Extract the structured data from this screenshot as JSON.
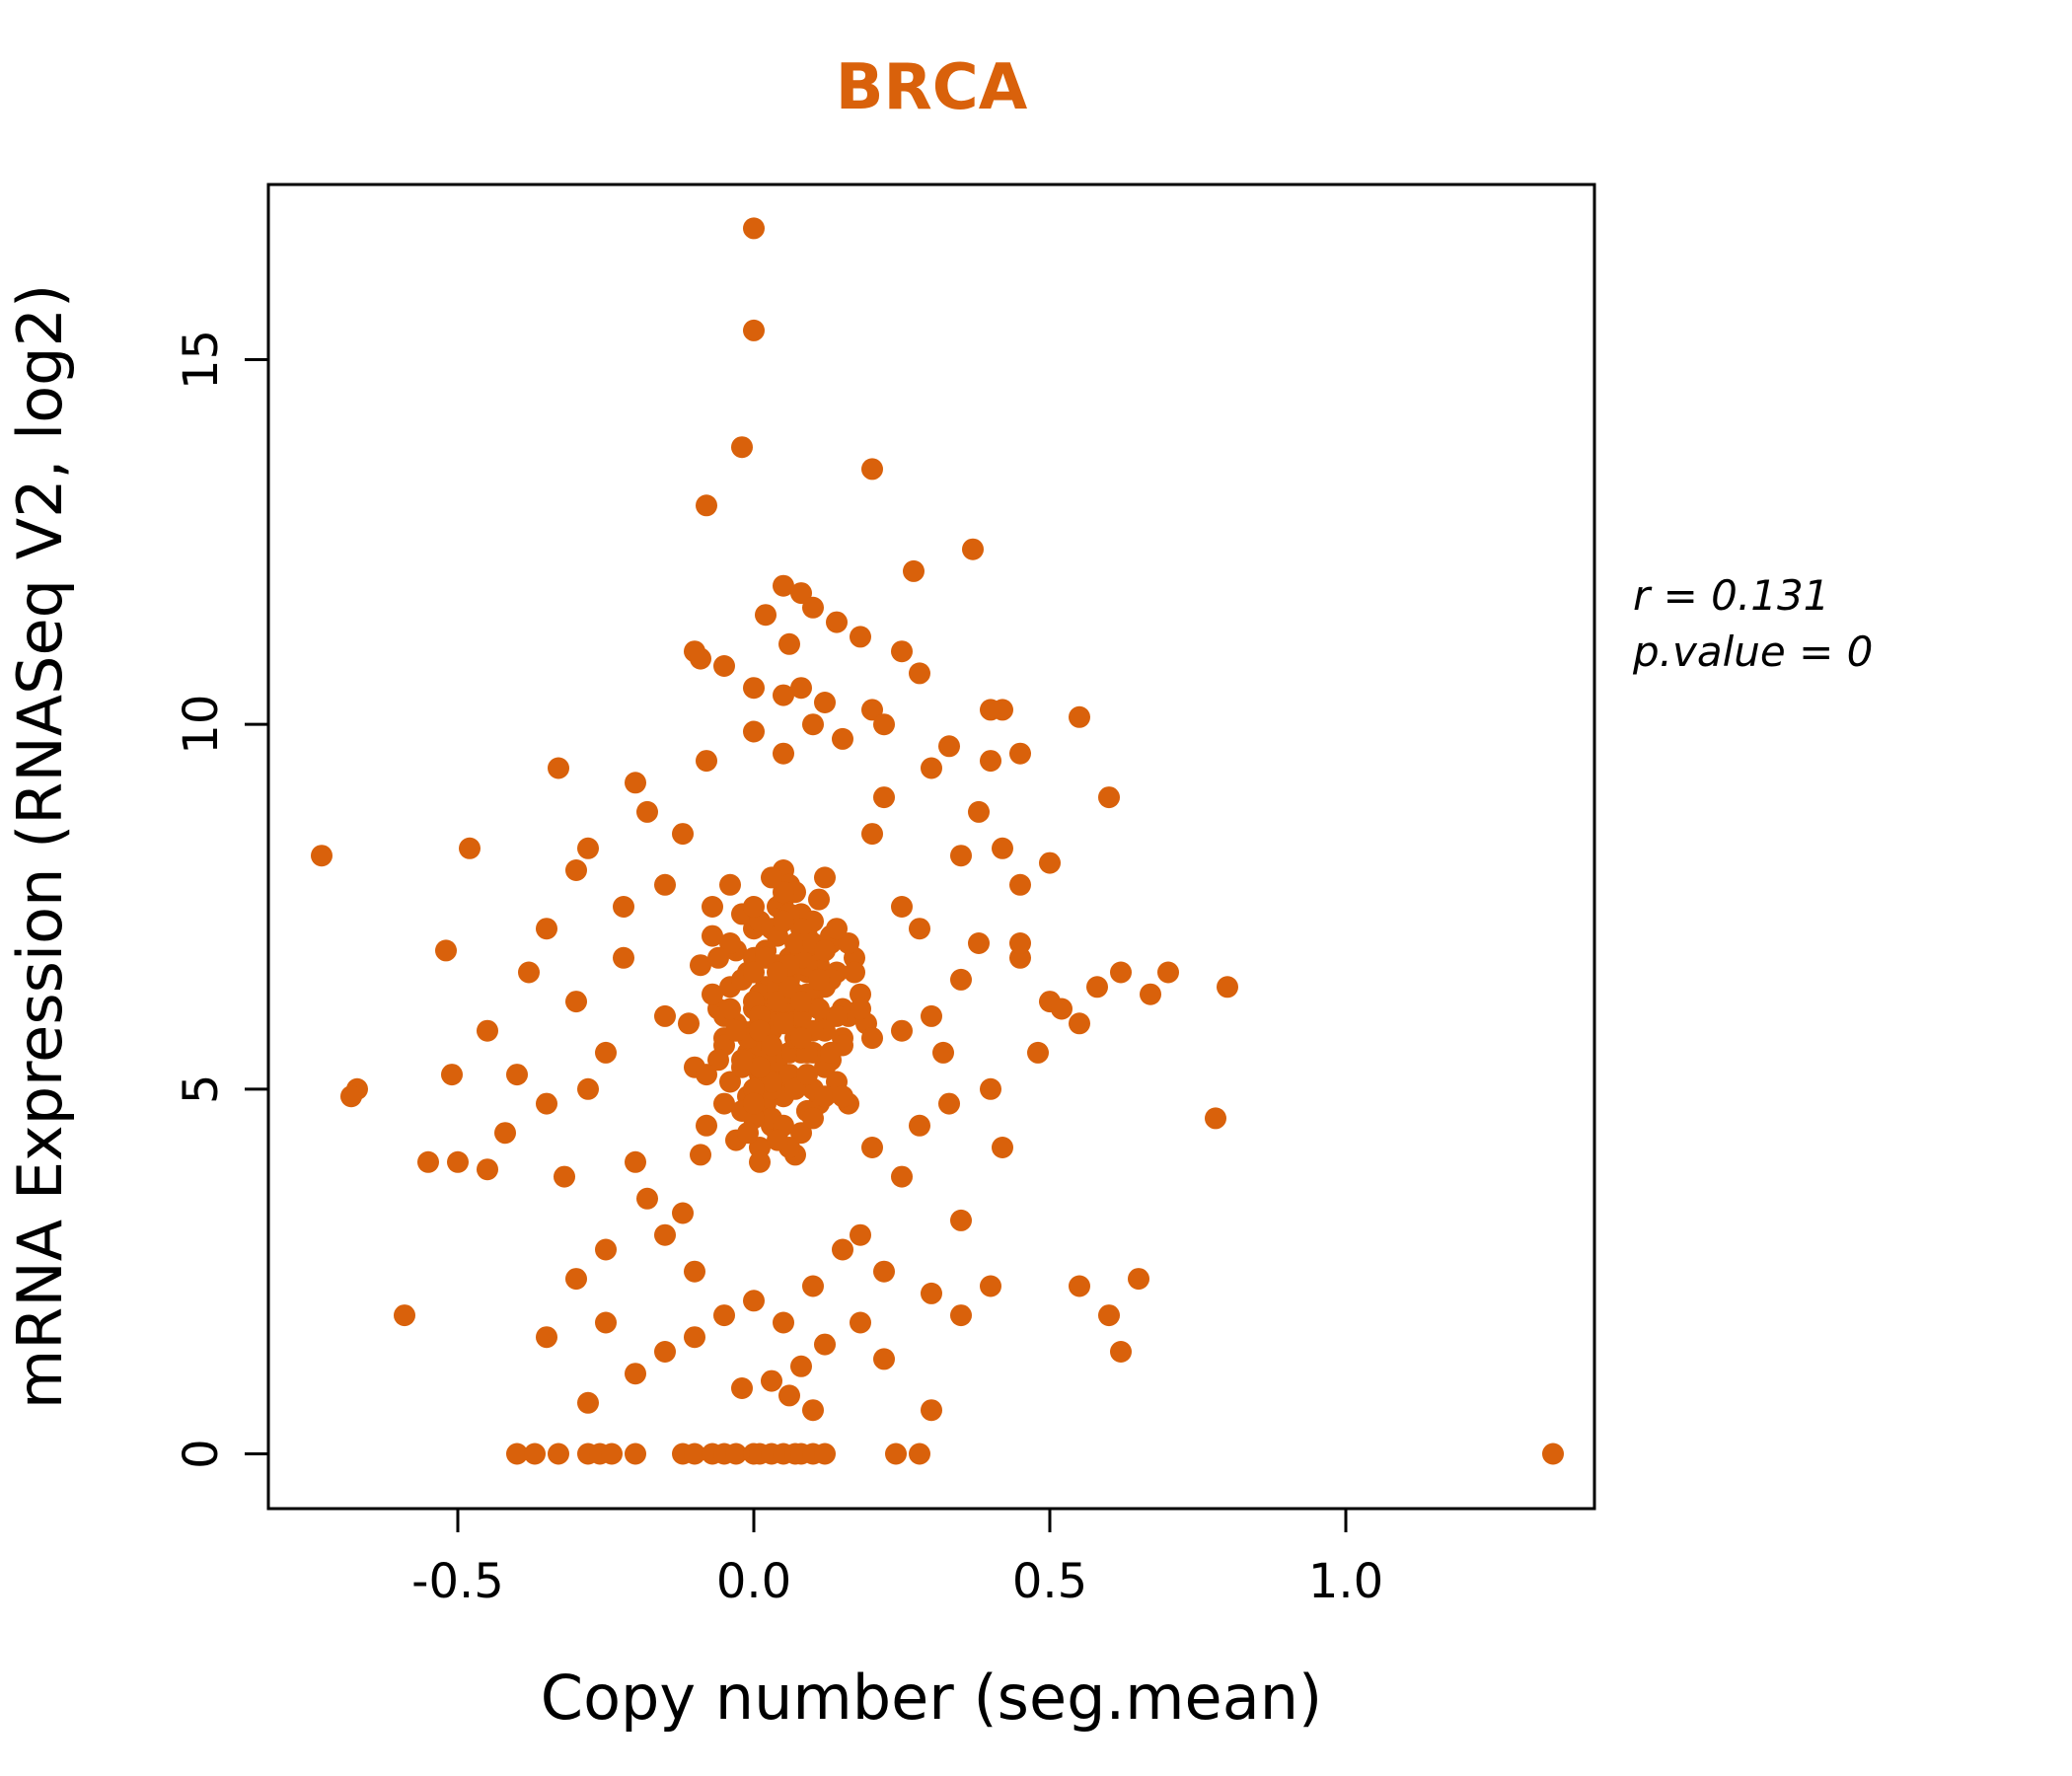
{
  "annotation": {
    "line1": "r = 0.131",
    "line2": "p.value = 0"
  },
  "chart_data": {
    "type": "scatter",
    "title": "BRCA",
    "title_color": "#D9610B",
    "point_color": "#D9610B",
    "xlabel": "Copy number (seg.mean)",
    "ylabel": "mRNA Expression (RNASeq V2, log2)",
    "xlim": [
      -0.82,
      1.42
    ],
    "ylim": [
      -0.75,
      17.4
    ],
    "grid": false,
    "stats": {
      "r": 0.131,
      "p_value": 0
    },
    "x_ticks": [
      {
        "v": -0.5,
        "label": "-0.5"
      },
      {
        "v": 0.0,
        "label": "0.0"
      },
      {
        "v": 0.5,
        "label": "0.5"
      },
      {
        "v": 1.0,
        "label": "1.0"
      }
    ],
    "y_ticks": [
      {
        "v": 0,
        "label": "0"
      },
      {
        "v": 5,
        "label": "5"
      },
      {
        "v": 10,
        "label": "10"
      },
      {
        "v": 15,
        "label": "15"
      }
    ],
    "points": [
      [
        0.01,
        5.2
      ],
      [
        0.03,
        6.1
      ],
      [
        -0.02,
        5.8
      ],
      [
        0.05,
        6.5
      ],
      [
        0.08,
        5.5
      ],
      [
        0.0,
        7.2
      ],
      [
        0.02,
        4.8
      ],
      [
        0.06,
        6.8
      ],
      [
        -0.04,
        5.1
      ],
      [
        0.1,
        6.2
      ],
      [
        0.04,
        7.5
      ],
      [
        -0.01,
        6.6
      ],
      [
        0.07,
        5.9
      ],
      [
        0.03,
        4.5
      ],
      [
        0.09,
        7.1
      ],
      [
        0.0,
        5.6
      ],
      [
        0.05,
        8.0
      ],
      [
        -0.03,
        6.9
      ],
      [
        0.12,
        5.3
      ],
      [
        0.02,
        6.4
      ],
      [
        0.06,
        7.8
      ],
      [
        -0.05,
        5.7
      ],
      [
        0.08,
        6.0
      ],
      [
        0.01,
        4.2
      ],
      [
        0.11,
        6.7
      ],
      [
        0.04,
        5.0
      ],
      [
        -0.02,
        7.4
      ],
      [
        0.07,
        6.3
      ],
      [
        0.0,
        5.4
      ],
      [
        0.13,
        7.0
      ],
      [
        0.03,
        5.8
      ],
      [
        0.09,
        4.7
      ],
      [
        -0.06,
        6.1
      ],
      [
        0.05,
        7.6
      ],
      [
        0.02,
        5.2
      ],
      [
        0.1,
        6.9
      ],
      [
        -0.01,
        4.9
      ],
      [
        0.06,
        5.5
      ],
      [
        0.14,
        6.6
      ],
      [
        0.01,
        7.3
      ],
      [
        0.08,
        5.1
      ],
      [
        -0.04,
        6.4
      ],
      [
        0.04,
        4.4
      ],
      [
        0.12,
        5.9
      ],
      [
        0.0,
        6.8
      ],
      [
        0.07,
        7.7
      ],
      [
        -0.02,
        5.3
      ],
      [
        0.09,
        6.2
      ],
      [
        0.03,
        4.6
      ],
      [
        0.15,
        5.7
      ],
      [
        0.05,
        6.0
      ],
      [
        -0.07,
        7.1
      ],
      [
        0.11,
        4.8
      ],
      [
        0.02,
        5.9
      ],
      [
        0.06,
        6.5
      ],
      [
        -0.03,
        4.3
      ],
      [
        0.08,
        7.4
      ],
      [
        0.0,
        6.1
      ],
      [
        0.13,
        5.4
      ],
      [
        0.04,
        6.7
      ],
      [
        0.1,
        5.0
      ],
      [
        -0.05,
        5.6
      ],
      [
        0.01,
        6.3
      ],
      [
        0.07,
        4.1
      ],
      [
        0.16,
        6.0
      ],
      [
        0.03,
        7.2
      ],
      [
        -0.01,
        5.5
      ],
      [
        0.09,
        6.6
      ],
      [
        0.05,
        4.9
      ],
      [
        0.12,
        7.9
      ],
      [
        0.0,
        5.8
      ],
      [
        0.06,
        6.2
      ],
      [
        -0.08,
        4.5
      ],
      [
        0.14,
        5.1
      ],
      [
        0.02,
        6.9
      ],
      [
        0.08,
        5.6
      ],
      [
        -0.04,
        7.0
      ],
      [
        0.11,
        6.4
      ],
      [
        0.04,
        5.3
      ],
      [
        0.17,
        6.8
      ],
      [
        0.01,
        4.0
      ],
      [
        0.07,
        5.7
      ],
      [
        -0.02,
        6.5
      ],
      [
        0.1,
        7.3
      ],
      [
        0.03,
        5.0
      ],
      [
        0.15,
        6.1
      ],
      [
        -0.06,
        5.4
      ],
      [
        0.05,
        6.6
      ],
      [
        0.09,
        4.7
      ],
      [
        0.0,
        7.5
      ],
      [
        0.12,
        5.8
      ],
      [
        0.02,
        6.0
      ],
      [
        -0.09,
        6.7
      ],
      [
        0.06,
        5.2
      ],
      [
        0.18,
        6.3
      ],
      [
        0.04,
        7.1
      ],
      [
        -0.03,
        5.9
      ],
      [
        0.08,
        4.4
      ],
      [
        0.13,
        6.5
      ],
      [
        0.01,
        5.6
      ],
      [
        0.07,
        6.9
      ],
      [
        -0.05,
        4.8
      ],
      [
        0.1,
        5.5
      ],
      [
        0.03,
        6.2
      ],
      [
        0.16,
        7.0
      ],
      [
        0.0,
        4.6
      ],
      [
        0.05,
        5.9
      ],
      [
        -0.07,
        6.3
      ],
      [
        0.11,
        7.6
      ],
      [
        0.02,
        5.1
      ],
      [
        0.09,
        6.7
      ],
      [
        -0.01,
        5.7
      ],
      [
        0.06,
        4.2
      ],
      [
        0.14,
        6.0
      ],
      [
        0.04,
        6.4
      ],
      [
        -0.1,
        5.3
      ],
      [
        0.08,
        7.2
      ],
      [
        0.01,
        6.1
      ],
      [
        0.12,
        4.9
      ],
      [
        0.03,
        5.5
      ],
      [
        0.17,
        6.6
      ],
      [
        -0.04,
        7.8
      ],
      [
        0.07,
        5.0
      ],
      [
        0.0,
        6.2
      ],
      [
        0.1,
        5.8
      ],
      [
        -0.06,
        6.8
      ],
      [
        0.05,
        4.5
      ],
      [
        0.13,
        7.1
      ],
      [
        0.02,
        5.4
      ],
      [
        0.09,
        6.3
      ],
      [
        -0.02,
        4.7
      ],
      [
        0.06,
        7.4
      ],
      [
        0.15,
        5.6
      ],
      [
        0.01,
        6.0
      ],
      [
        0.08,
        6.8
      ],
      [
        -0.08,
        5.2
      ],
      [
        0.11,
        6.1
      ],
      [
        0.04,
        4.3
      ],
      [
        0.19,
        5.9
      ],
      [
        0.0,
        6.6
      ],
      [
        0.07,
        7.0
      ],
      [
        -0.03,
        5.8
      ],
      [
        0.12,
        6.4
      ],
      [
        0.03,
        5.1
      ],
      [
        0.16,
        4.8
      ],
      [
        0.05,
        7.7
      ],
      [
        -0.05,
        6.0
      ],
      [
        0.09,
        5.5
      ],
      [
        0.02,
        6.9
      ],
      [
        0.1,
        4.6
      ],
      [
        0.01,
        5.3
      ],
      [
        0.06,
        6.7
      ],
      [
        -0.11,
        5.9
      ],
      [
        0.14,
        7.2
      ],
      [
        0.04,
        6.2
      ],
      [
        0.08,
        5.7
      ],
      [
        -0.01,
        4.4
      ],
      [
        0.11,
        6.5
      ],
      [
        0.03,
        7.9
      ],
      [
        0.18,
        6.1
      ],
      [
        0.0,
        5.0
      ],
      [
        0.07,
        6.3
      ],
      [
        -0.07,
        7.5
      ],
      [
        0.13,
        5.5
      ],
      [
        0.02,
        6.8
      ],
      [
        0.09,
        5.2
      ],
      [
        -0.04,
        6.1
      ],
      [
        0.05,
        7.3
      ],
      [
        0.15,
        4.9
      ],
      [
        0.01,
        5.8
      ],
      [
        0.06,
        6.4
      ],
      [
        -0.02,
        5.4
      ],
      [
        0.1,
        7.0
      ],
      [
        0.04,
        6.6
      ],
      [
        0.2,
        5.7
      ],
      [
        -0.09,
        4.1
      ],
      [
        0.08,
        6.2
      ],
      [
        0.03,
        5.6
      ],
      [
        0.12,
        6.9
      ],
      [
        0.0,
        4.8
      ],
      [
        -0.2,
        4.0
      ],
      [
        -0.25,
        5.5
      ],
      [
        -0.3,
        6.2
      ],
      [
        -0.35,
        4.8
      ],
      [
        -0.15,
        7.8
      ],
      [
        -0.18,
        3.5
      ],
      [
        -0.22,
        6.8
      ],
      [
        -0.28,
        5.0
      ],
      [
        -0.32,
        3.8
      ],
      [
        -0.12,
        8.5
      ],
      [
        0.25,
        7.5
      ],
      [
        0.3,
        6.0
      ],
      [
        0.35,
        8.2
      ],
      [
        0.28,
        4.5
      ],
      [
        0.22,
        9.0
      ],
      [
        0.32,
        5.5
      ],
      [
        0.38,
        7.0
      ],
      [
        0.25,
        3.8
      ],
      [
        0.3,
        9.4
      ],
      [
        0.35,
        6.5
      ],
      [
        -0.4,
        5.2
      ],
      [
        -0.38,
        6.6
      ],
      [
        -0.42,
        4.4
      ],
      [
        -0.35,
        7.2
      ],
      [
        -0.45,
        5.8
      ],
      [
        -0.3,
        8.0
      ],
      [
        -0.25,
        2.8
      ],
      [
        -0.2,
        9.2
      ],
      [
        -0.15,
        3.0
      ],
      [
        -0.18,
        8.8
      ],
      [
        0.4,
        5.0
      ],
      [
        0.45,
        6.8
      ],
      [
        0.42,
        4.2
      ],
      [
        0.38,
        8.8
      ],
      [
        0.48,
        5.5
      ],
      [
        0.35,
        3.2
      ],
      [
        0.4,
        9.5
      ],
      [
        0.45,
        7.8
      ],
      [
        0.5,
        6.2
      ],
      [
        0.42,
        10.2
      ],
      [
        -0.1,
        2.5
      ],
      [
        -0.08,
        9.5
      ],
      [
        -0.12,
        3.3
      ],
      [
        -0.15,
        6.0
      ],
      [
        -0.22,
        7.5
      ],
      [
        0.18,
        3.0
      ],
      [
        0.2,
        8.5
      ],
      [
        0.22,
        2.5
      ],
      [
        0.25,
        5.8
      ],
      [
        0.28,
        7.2
      ],
      [
        -0.33,
        9.4
      ],
      [
        -0.28,
        8.3
      ],
      [
        0.33,
        4.8
      ],
      [
        0.3,
        2.2
      ],
      [
        0.2,
        4.2
      ],
      [
        0.15,
        2.8
      ],
      [
        0.1,
        2.3
      ],
      [
        0.05,
        1.8
      ],
      [
        0.12,
        1.5
      ],
      [
        0.08,
        1.2
      ],
      [
        -0.05,
        1.9
      ],
      [
        -0.1,
        1.6
      ],
      [
        0.0,
        2.1
      ],
      [
        0.03,
        1.0
      ],
      [
        0.18,
        1.8
      ],
      [
        0.22,
        1.3
      ],
      [
        -0.15,
        1.4
      ],
      [
        0.06,
        0.8
      ],
      [
        0.1,
        0.6
      ],
      [
        -0.02,
        0.9
      ],
      [
        0.35,
        1.9
      ],
      [
        0.4,
        2.3
      ],
      [
        -0.25,
        1.8
      ],
      [
        -0.3,
        2.4
      ],
      [
        0.15,
        9.8
      ],
      [
        0.1,
        10.0
      ],
      [
        0.05,
        9.6
      ],
      [
        -0.05,
        10.8
      ],
      [
        0.0,
        9.9
      ],
      [
        0.08,
        10.5
      ],
      [
        -0.4,
        0
      ],
      [
        -0.37,
        0
      ],
      [
        -0.33,
        0
      ],
      [
        -0.28,
        0
      ],
      [
        -0.26,
        0
      ],
      [
        -0.24,
        0
      ],
      [
        -0.2,
        0
      ],
      [
        -0.12,
        0
      ],
      [
        -0.1,
        0
      ],
      [
        -0.07,
        0
      ],
      [
        -0.05,
        0
      ],
      [
        -0.03,
        0
      ],
      [
        0.0,
        0
      ],
      [
        0.01,
        0
      ],
      [
        0.03,
        0
      ],
      [
        0.05,
        0
      ],
      [
        0.07,
        0
      ],
      [
        0.08,
        0
      ],
      [
        0.1,
        0
      ],
      [
        0.12,
        0
      ],
      [
        0.24,
        0
      ],
      [
        0.28,
        0
      ],
      [
        1.35,
        0
      ],
      [
        -0.28,
        0.7
      ],
      [
        -0.2,
        1.1
      ],
      [
        0.3,
        0.6
      ],
      [
        -0.35,
        1.6
      ],
      [
        0.62,
        1.4
      ],
      [
        0.65,
        2.4
      ],
      [
        0.6,
        1.9
      ],
      [
        0.55,
        2.3
      ],
      [
        0.0,
        16.8
      ],
      [
        0.0,
        15.4
      ],
      [
        -0.02,
        13.8
      ],
      [
        0.2,
        13.5
      ],
      [
        -0.08,
        13.0
      ],
      [
        0.37,
        12.4
      ],
      [
        0.27,
        12.1
      ],
      [
        0.05,
        11.9
      ],
      [
        0.08,
        11.8
      ],
      [
        0.1,
        11.6
      ],
      [
        0.02,
        11.5
      ],
      [
        0.14,
        11.4
      ],
      [
        -0.1,
        11.0
      ],
      [
        -0.09,
        10.9
      ],
      [
        0.25,
        11.0
      ],
      [
        0.28,
        10.7
      ],
      [
        0.0,
        10.5
      ],
      [
        0.05,
        10.4
      ],
      [
        0.12,
        10.3
      ],
      [
        0.2,
        10.2
      ],
      [
        0.55,
        10.1
      ],
      [
        0.4,
        10.2
      ],
      [
        0.22,
        10.0
      ],
      [
        0.33,
        9.7
      ],
      [
        0.45,
        9.6
      ],
      [
        0.18,
        11.2
      ],
      [
        0.06,
        11.1
      ],
      [
        -0.73,
        8.2
      ],
      [
        -0.67,
        5.0
      ],
      [
        -0.68,
        4.9
      ],
      [
        -0.59,
        1.9
      ],
      [
        -0.55,
        4.0
      ],
      [
        -0.52,
        6.9
      ],
      [
        -0.51,
        5.2
      ],
      [
        -0.5,
        4.0
      ],
      [
        -0.45,
        3.9
      ],
      [
        -0.48,
        8.3
      ],
      [
        0.8,
        6.4
      ],
      [
        0.78,
        4.6
      ],
      [
        0.7,
        6.6
      ],
      [
        0.67,
        6.3
      ],
      [
        0.6,
        9.0
      ],
      [
        0.55,
        5.9
      ],
      [
        0.5,
        8.1
      ],
      [
        0.52,
        6.1
      ],
      [
        0.45,
        7.0
      ],
      [
        0.42,
        8.3
      ],
      [
        0.58,
        6.4
      ],
      [
        0.62,
        6.6
      ]
    ]
  }
}
